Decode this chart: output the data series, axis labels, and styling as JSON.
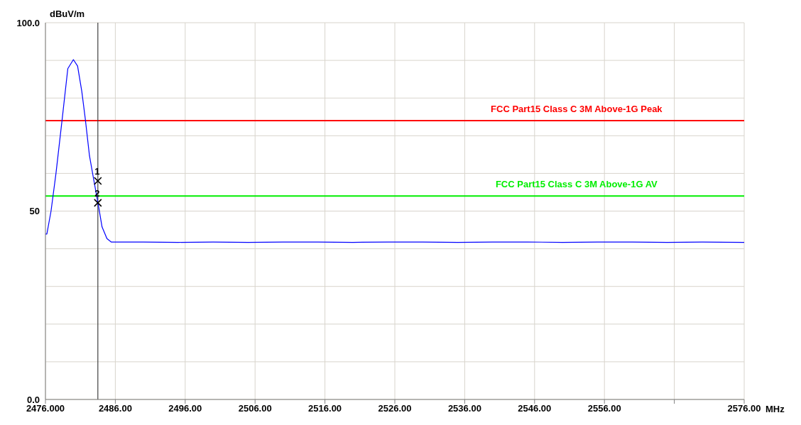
{
  "chart_data": {
    "type": "line",
    "ylabel": "dBuV/m",
    "xlabel": "MHz",
    "xlim": [
      2476,
      2576
    ],
    "xticks": [
      {
        "value": 2476,
        "label": "2476.000"
      },
      {
        "value": 2486,
        "label": "2486.00"
      },
      {
        "value": 2496,
        "label": "2496.00"
      },
      {
        "value": 2506,
        "label": "2506.00"
      },
      {
        "value": 2516,
        "label": "2516.00"
      },
      {
        "value": 2526,
        "label": "2526.00"
      },
      {
        "value": 2536,
        "label": "2536.00"
      },
      {
        "value": 2546,
        "label": "2546.00"
      },
      {
        "value": 2556,
        "label": "2556.00"
      },
      {
        "value": 2566,
        "label": null
      },
      {
        "value": 2576,
        "label": "2576.00"
      }
    ],
    "ylim": [
      0,
      100
    ],
    "yticks": [
      {
        "value": 0,
        "label": "0.0"
      },
      {
        "value": 10,
        "label": null
      },
      {
        "value": 20,
        "label": null
      },
      {
        "value": 30,
        "label": null
      },
      {
        "value": 40,
        "label": null
      },
      50,
      {
        "value": 60,
        "label": null
      },
      {
        "value": 70,
        "label": null
      },
      {
        "value": 80,
        "label": null
      },
      {
        "value": 90,
        "label": null
      },
      {
        "value": 100,
        "label": "100.0"
      }
    ],
    "grid": true,
    "legend": false,
    "marker": "none",
    "line_style": "solid",
    "series": [
      {
        "color": "#0000ff",
        "x": [
          2476,
          2476.2,
          2476.8,
          2477.5,
          2478.4,
          2479.2,
          2480,
          2480.6,
          2481.2,
          2481.7,
          2482.3,
          2483,
          2483.6,
          2484.1,
          2484.8,
          2485.4,
          2490,
          2495,
          2500,
          2505,
          2510,
          2515,
          2520,
          2525,
          2530,
          2535,
          2540,
          2545,
          2550,
          2555,
          2560,
          2565,
          2570,
          2576
        ],
        "values": [
          43.9,
          43.9,
          50,
          59.9,
          74.5,
          87.8,
          90.2,
          88.5,
          81.8,
          74.5,
          64.7,
          57.4,
          51.3,
          45.8,
          42.7,
          41.8,
          41.8,
          41.7,
          41.8,
          41.7,
          41.8,
          41.8,
          41.7,
          41.8,
          41.8,
          41.7,
          41.8,
          41.8,
          41.7,
          41.8,
          41.8,
          41.7,
          41.8,
          41.7
        ]
      },
      {
        "type": "scatter",
        "color": "#000000",
        "marker": "cross",
        "x": [
          2483.5,
          2483.5
        ],
        "values": [
          58.0,
          52.2
        ]
      }
    ],
    "ref_lines": [
      {
        "axis": "y",
        "value": 74,
        "label": "FCC Part15 Class C 3M Above-1G Peak",
        "color": "#ff0000"
      },
      {
        "axis": "y",
        "value": 54,
        "label": "FCC Part15 Class C 3M Above-1G AV",
        "color": "#00ee00"
      },
      {
        "axis": "x",
        "value": 2483.5,
        "color": "#404040"
      }
    ],
    "annotations": [
      {
        "text": "1",
        "x": 2483.5,
        "y": 58.0
      },
      {
        "text": "2",
        "x": 2483.5,
        "y": 52.2
      }
    ]
  }
}
